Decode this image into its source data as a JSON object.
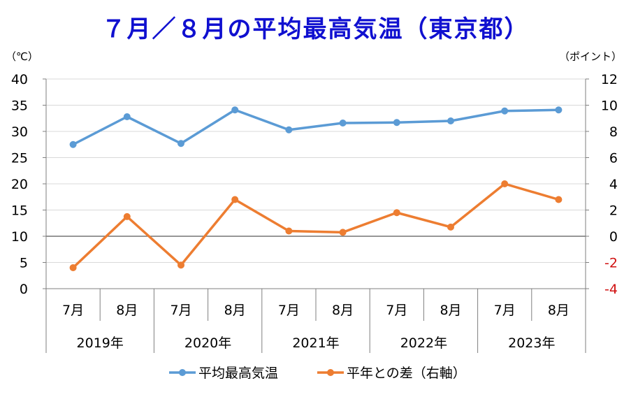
{
  "chart_data": {
    "type": "line",
    "title": "７月／８月の平均最高気温（東京都）",
    "left_axis_unit": "（℃）",
    "right_axis_unit": "（ポイント）",
    "y_left": {
      "min": 0,
      "max": 40,
      "step": 5,
      "ticks": [
        "0",
        "5",
        "10",
        "15",
        "20",
        "25",
        "30",
        "35",
        "40"
      ]
    },
    "y_right": {
      "min": -4,
      "max": 12,
      "step": 2,
      "ticks": [
        "-4",
        "-2",
        "0",
        "2",
        "4",
        "6",
        "8",
        "10",
        "12"
      ]
    },
    "months": [
      "7月",
      "8月",
      "7月",
      "8月",
      "7月",
      "8月",
      "7月",
      "8月",
      "7月",
      "8月"
    ],
    "years": [
      "2019年",
      "2020年",
      "2021年",
      "2022年",
      "2023年"
    ],
    "series": [
      {
        "name": "平均最高気温",
        "axis": "left",
        "color": "#5b9bd5",
        "values": [
          27.5,
          32.8,
          27.7,
          34.1,
          30.3,
          31.6,
          31.7,
          32.0,
          33.9,
          34.1
        ]
      },
      {
        "name": "平年との差（右軸）",
        "axis": "right",
        "color": "#ed7d31",
        "values": [
          -2.4,
          1.5,
          -2.2,
          2.8,
          0.4,
          0.3,
          1.8,
          0.7,
          4.0,
          2.8
        ]
      }
    ],
    "negative_tick_color": "#d01010"
  }
}
